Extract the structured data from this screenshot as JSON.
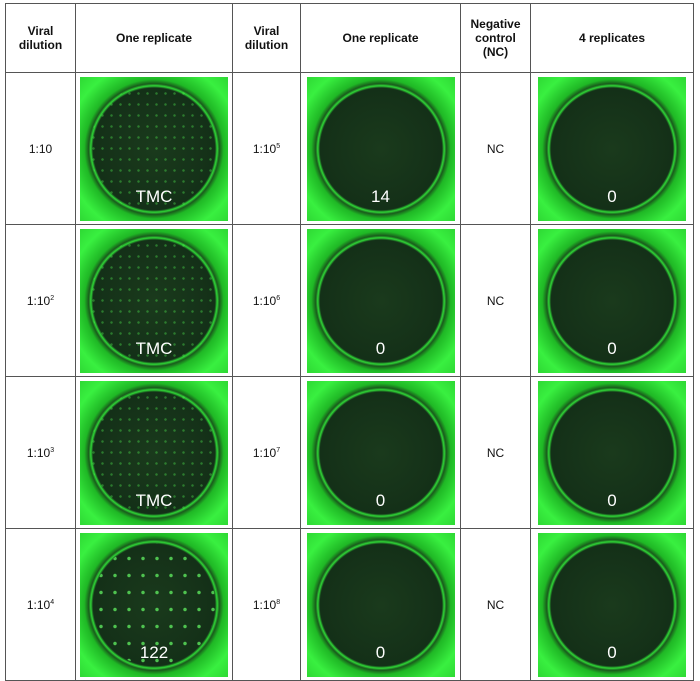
{
  "headers": [
    "Viral dilution",
    "One replicate",
    "Viral dilution",
    "One replicate",
    "Negative control (NC)",
    "4 replicates"
  ],
  "rows": [
    {
      "dil1": "1:10",
      "exp1": "",
      "count1": "TMC",
      "dil2": "1:10",
      "exp2": "5",
      "count2": "14",
      "nc": "NC",
      "count3": "0"
    },
    {
      "dil1": "1:10",
      "exp1": "2",
      "count1": "TMC",
      "dil2": "1:10",
      "exp2": "6",
      "count2": "0",
      "nc": "NC",
      "count3": "0"
    },
    {
      "dil1": "1:10",
      "exp1": "3",
      "count1": "TMC",
      "dil2": "1:10",
      "exp2": "7",
      "count2": "0",
      "nc": "NC",
      "count3": "0"
    },
    {
      "dil1": "1:10",
      "exp1": "4",
      "count1": "122",
      "dil2": "1:10",
      "exp2": "8",
      "count2": "0",
      "nc": "NC",
      "count3": "0"
    }
  ]
}
